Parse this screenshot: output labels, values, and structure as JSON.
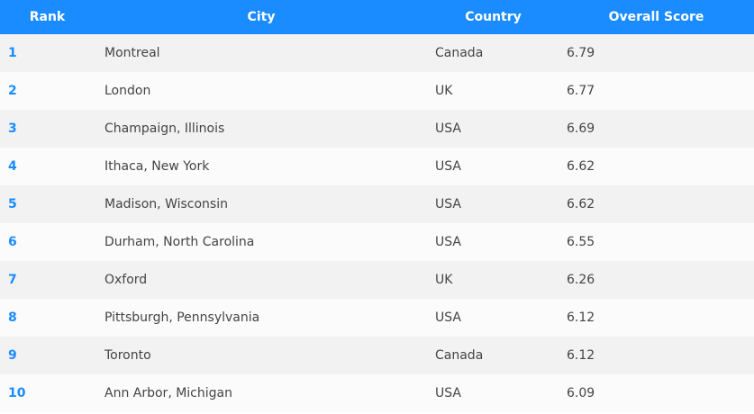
{
  "chart_data": {
    "type": "table",
    "columns": [
      "Rank",
      "City",
      "Country",
      "Overall Score"
    ],
    "rows": [
      {
        "rank": "1",
        "city": "Montreal",
        "country": "Canada",
        "score": "6.79"
      },
      {
        "rank": "2",
        "city": "London",
        "country": "UK",
        "score": "6.77"
      },
      {
        "rank": "3",
        "city": "Champaign, Illinois",
        "country": "USA",
        "score": "6.69"
      },
      {
        "rank": "4",
        "city": "Ithaca, New York",
        "country": "USA",
        "score": "6.62"
      },
      {
        "rank": "5",
        "city": "Madison, Wisconsin",
        "country": "USA",
        "score": "6.62"
      },
      {
        "rank": "6",
        "city": "Durham, North Carolina",
        "country": "USA",
        "score": "6.55"
      },
      {
        "rank": "7",
        "city": "Oxford",
        "country": "UK",
        "score": "6.26"
      },
      {
        "rank": "8",
        "city": "Pittsburgh, Pennsylvania",
        "country": "USA",
        "score": "6.12"
      },
      {
        "rank": "9",
        "city": "Toronto",
        "country": "Canada",
        "score": "6.12"
      },
      {
        "rank": "10",
        "city": "Ann Arbor, Michigan",
        "country": "USA",
        "score": "6.09"
      }
    ]
  },
  "colors": {
    "header_bg": "#1a8cff",
    "rank_text": "#1a8cff",
    "row_odd": "#f2f2f2",
    "row_even": "#fbfbfb"
  }
}
